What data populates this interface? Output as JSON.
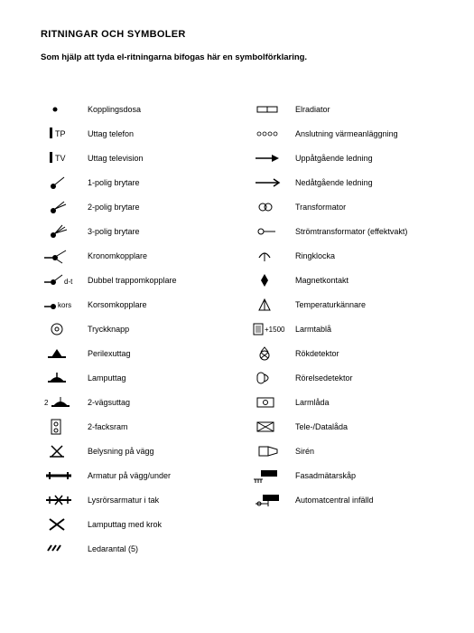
{
  "title": "RITNINGAR OCH SYMBOLER",
  "subtitle": "Som hjälp att tyda el-ritningarna bifogas här en symbolförklaring.",
  "left": [
    {
      "icon": "dot",
      "label": "Kopplingsdosa"
    },
    {
      "icon": "tp",
      "label": "Uttag telefon"
    },
    {
      "icon": "tv",
      "label": "Uttag television"
    },
    {
      "icon": "switch1",
      "label": "1-polig brytare"
    },
    {
      "icon": "switch2",
      "label": "2-polig brytare"
    },
    {
      "icon": "switch3",
      "label": "3-polig brytare"
    },
    {
      "icon": "crown",
      "label": "Kronomkopplare"
    },
    {
      "icon": "dt",
      "label": "Dubbel trappomkopplare"
    },
    {
      "icon": "kors",
      "label": "Korsomkopplare"
    },
    {
      "icon": "push",
      "label": "Tryckknapp"
    },
    {
      "icon": "perilex",
      "label": "Perilexuttag"
    },
    {
      "icon": "lamp",
      "label": "Lamputtag"
    },
    {
      "icon": "vag2",
      "label": "2-vägsuttag"
    },
    {
      "icon": "fack2",
      "label": "2-facksram"
    },
    {
      "icon": "wall",
      "label": "Belysning på vägg"
    },
    {
      "icon": "armatur",
      "label": "Armatur på vägg/under"
    },
    {
      "icon": "lysror",
      "label": "Lysrörsarmatur i tak"
    },
    {
      "icon": "lampkrok",
      "label": "Lamputtag med krok"
    },
    {
      "icon": "ledar",
      "label": "Ledarantal (5)"
    }
  ],
  "right": [
    {
      "icon": "radiator",
      "label": "Elradiator"
    },
    {
      "icon": "circles4",
      "label": "Anslutning värmeanläggning"
    },
    {
      "icon": "arrowup",
      "label": "Uppåtgående ledning"
    },
    {
      "icon": "arrowdown",
      "label": "Nedåtgående ledning"
    },
    {
      "icon": "transformer",
      "label": "Transformator"
    },
    {
      "icon": "currtrans",
      "label": "Strömtransformator (effektvakt)"
    },
    {
      "icon": "bell",
      "label": "Ringklocka"
    },
    {
      "icon": "magnet",
      "label": "Magnetkontakt"
    },
    {
      "icon": "temp",
      "label": "Temperaturkännare"
    },
    {
      "icon": "larmtabla",
      "label": "Larmtablå"
    },
    {
      "icon": "smoke",
      "label": "Rökdetektor"
    },
    {
      "icon": "motion",
      "label": "Rörelsedetektor"
    },
    {
      "icon": "larmlada",
      "label": "Larmlåda"
    },
    {
      "icon": "tele",
      "label": "Tele-/Datalåda"
    },
    {
      "icon": "siren",
      "label": "Sirén"
    },
    {
      "icon": "fasad",
      "label": "Fasadmätarskåp"
    },
    {
      "icon": "autocentral",
      "label": "Automatcentral infälld"
    }
  ],
  "colors": {
    "fg": "#000000",
    "bg": "#ffffff"
  }
}
